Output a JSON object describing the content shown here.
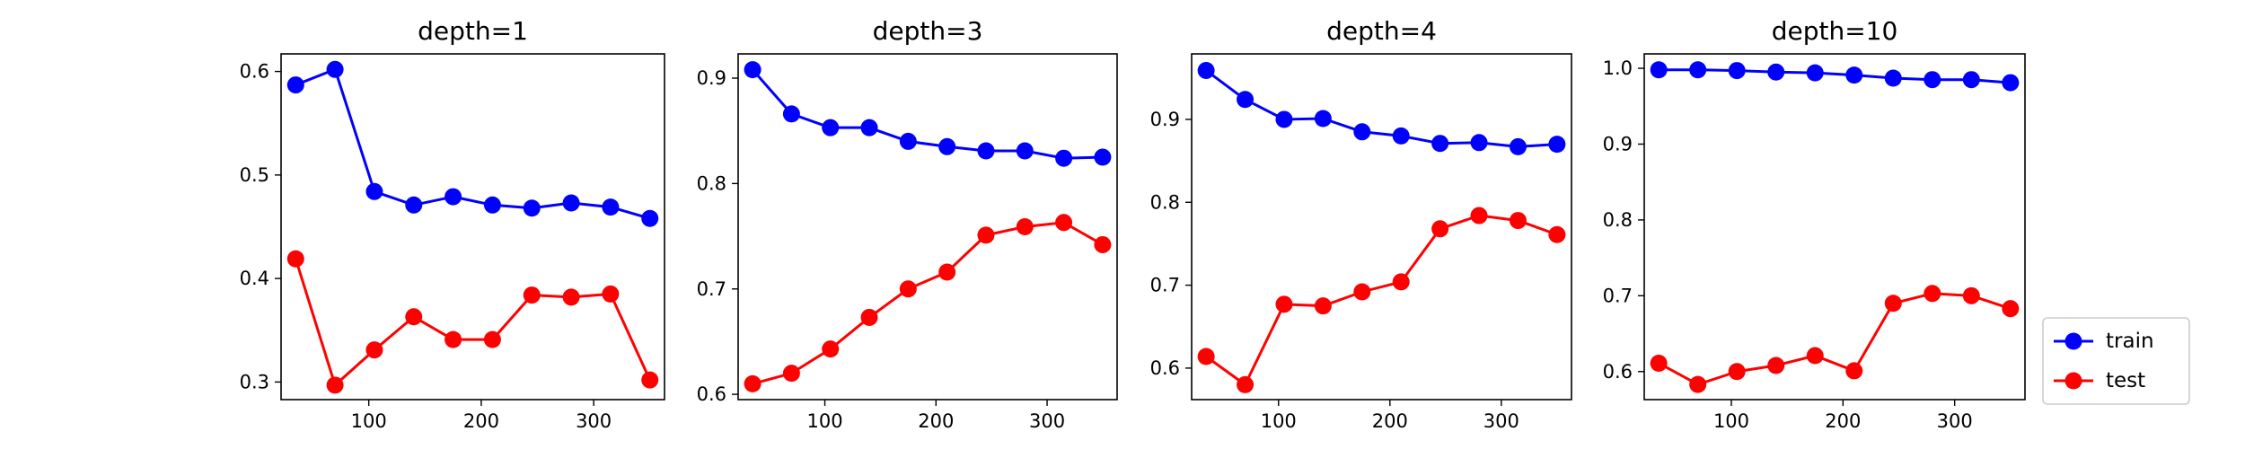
{
  "colors": {
    "train": "#0000ff",
    "test": "#ff0000",
    "axis": "#000000",
    "legend_border": "#cccccc",
    "background": "#ffffff"
  },
  "legend": {
    "placement": "right-bottom",
    "entries": [
      "train",
      "test"
    ]
  },
  "chart_data": [
    {
      "type": "line",
      "title": "depth=1",
      "xlabel": "",
      "ylabel": "",
      "x": [
        35,
        70,
        105,
        140,
        175,
        210,
        245,
        280,
        315,
        350
      ],
      "xlim": [
        22,
        363
      ],
      "ylim": [
        0.283,
        0.617
      ],
      "xticks": [
        100,
        200,
        300
      ],
      "yticks": [
        0.3,
        0.4,
        0.5,
        0.6
      ],
      "ytick_labels": [
        "0.3",
        "0.4",
        "0.5",
        "0.6"
      ],
      "grid": false,
      "series": [
        {
          "name": "train",
          "values": [
            0.587,
            0.602,
            0.484,
            0.471,
            0.479,
            0.471,
            0.468,
            0.473,
            0.469,
            0.458
          ]
        },
        {
          "name": "test",
          "values": [
            0.419,
            0.297,
            0.331,
            0.363,
            0.341,
            0.341,
            0.384,
            0.382,
            0.385,
            0.302
          ]
        }
      ]
    },
    {
      "type": "line",
      "title": "depth=3",
      "xlabel": "",
      "ylabel": "",
      "x": [
        35,
        70,
        105,
        140,
        175,
        210,
        245,
        280,
        315,
        350
      ],
      "xlim": [
        22,
        363
      ],
      "ylim": [
        0.595,
        0.923
      ],
      "xticks": [
        100,
        200,
        300
      ],
      "yticks": [
        0.6,
        0.7,
        0.8,
        0.9
      ],
      "ytick_labels": [
        "0.6",
        "0.7",
        "0.8",
        "0.9"
      ],
      "grid": false,
      "series": [
        {
          "name": "train",
          "values": [
            0.908,
            0.866,
            0.853,
            0.853,
            0.84,
            0.835,
            0.831,
            0.831,
            0.824,
            0.825
          ]
        },
        {
          "name": "test",
          "values": [
            0.61,
            0.62,
            0.643,
            0.673,
            0.7,
            0.716,
            0.751,
            0.759,
            0.763,
            0.742
          ]
        }
      ]
    },
    {
      "type": "line",
      "title": "depth=4",
      "xlabel": "",
      "ylabel": "",
      "x": [
        35,
        70,
        105,
        140,
        175,
        210,
        245,
        280,
        315,
        350
      ],
      "xlim": [
        22,
        363
      ],
      "ylim": [
        0.562,
        0.979
      ],
      "xticks": [
        100,
        200,
        300
      ],
      "yticks": [
        0.6,
        0.7,
        0.8,
        0.9
      ],
      "ytick_labels": [
        "0.6",
        "0.7",
        "0.8",
        "0.9"
      ],
      "grid": false,
      "series": [
        {
          "name": "train",
          "values": [
            0.959,
            0.924,
            0.9,
            0.901,
            0.885,
            0.88,
            0.871,
            0.872,
            0.867,
            0.87
          ]
        },
        {
          "name": "test",
          "values": [
            0.614,
            0.58,
            0.677,
            0.675,
            0.692,
            0.704,
            0.768,
            0.784,
            0.778,
            0.761
          ]
        }
      ]
    },
    {
      "type": "line",
      "title": "depth=10",
      "xlabel": "",
      "ylabel": "",
      "x": [
        35,
        70,
        105,
        140,
        175,
        210,
        245,
        280,
        315,
        350
      ],
      "xlim": [
        22,
        363
      ],
      "ylim": [
        0.563,
        1.019
      ],
      "xticks": [
        100,
        200,
        300
      ],
      "yticks": [
        0.6,
        0.7,
        0.8,
        0.9,
        1.0
      ],
      "ytick_labels": [
        "0.6",
        "0.7",
        "0.8",
        "0.9",
        "1.0"
      ],
      "grid": false,
      "series": [
        {
          "name": "train",
          "values": [
            0.998,
            0.998,
            0.997,
            0.995,
            0.994,
            0.991,
            0.987,
            0.985,
            0.985,
            0.981
          ]
        },
        {
          "name": "test",
          "values": [
            0.611,
            0.583,
            0.6,
            0.608,
            0.621,
            0.601,
            0.69,
            0.703,
            0.7,
            0.683
          ]
        }
      ]
    }
  ]
}
